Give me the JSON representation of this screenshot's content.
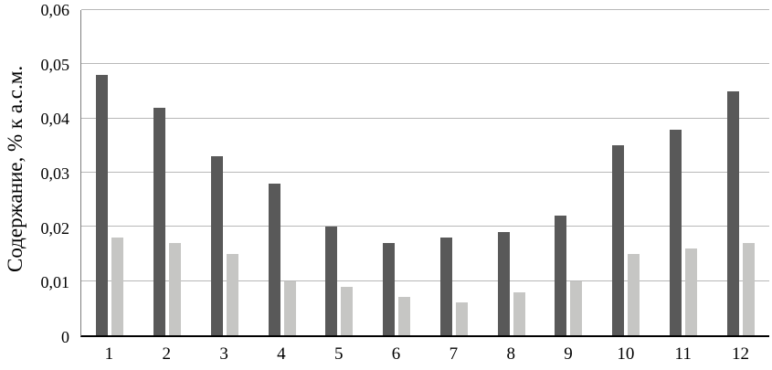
{
  "chart_data": {
    "type": "bar",
    "title": "",
    "xlabel": "",
    "ylabel": "Содержание, % к а.с.м.",
    "ylim": [
      0,
      0.06
    ],
    "grid": "horizontal",
    "legend_position": "none",
    "categories": [
      "1",
      "2",
      "3",
      "4",
      "5",
      "6",
      "7",
      "8",
      "9",
      "10",
      "11",
      "12"
    ],
    "y_tick_labels": [
      "0",
      "0,01",
      "0,02",
      "0,03",
      "0,04",
      "0,05",
      "0,06"
    ],
    "series": [
      {
        "name": "dark-series",
        "color": "#595959",
        "values": [
          0.048,
          0.042,
          0.033,
          0.028,
          0.02,
          0.017,
          0.018,
          0.019,
          0.022,
          0.035,
          0.038,
          0.045
        ]
      },
      {
        "name": "light-series",
        "color": "#c6c6c4",
        "values": [
          0.018,
          0.017,
          0.015,
          0.01,
          0.009,
          0.007,
          0.006,
          0.008,
          0.01,
          0.015,
          0.016,
          0.017
        ]
      }
    ]
  }
}
